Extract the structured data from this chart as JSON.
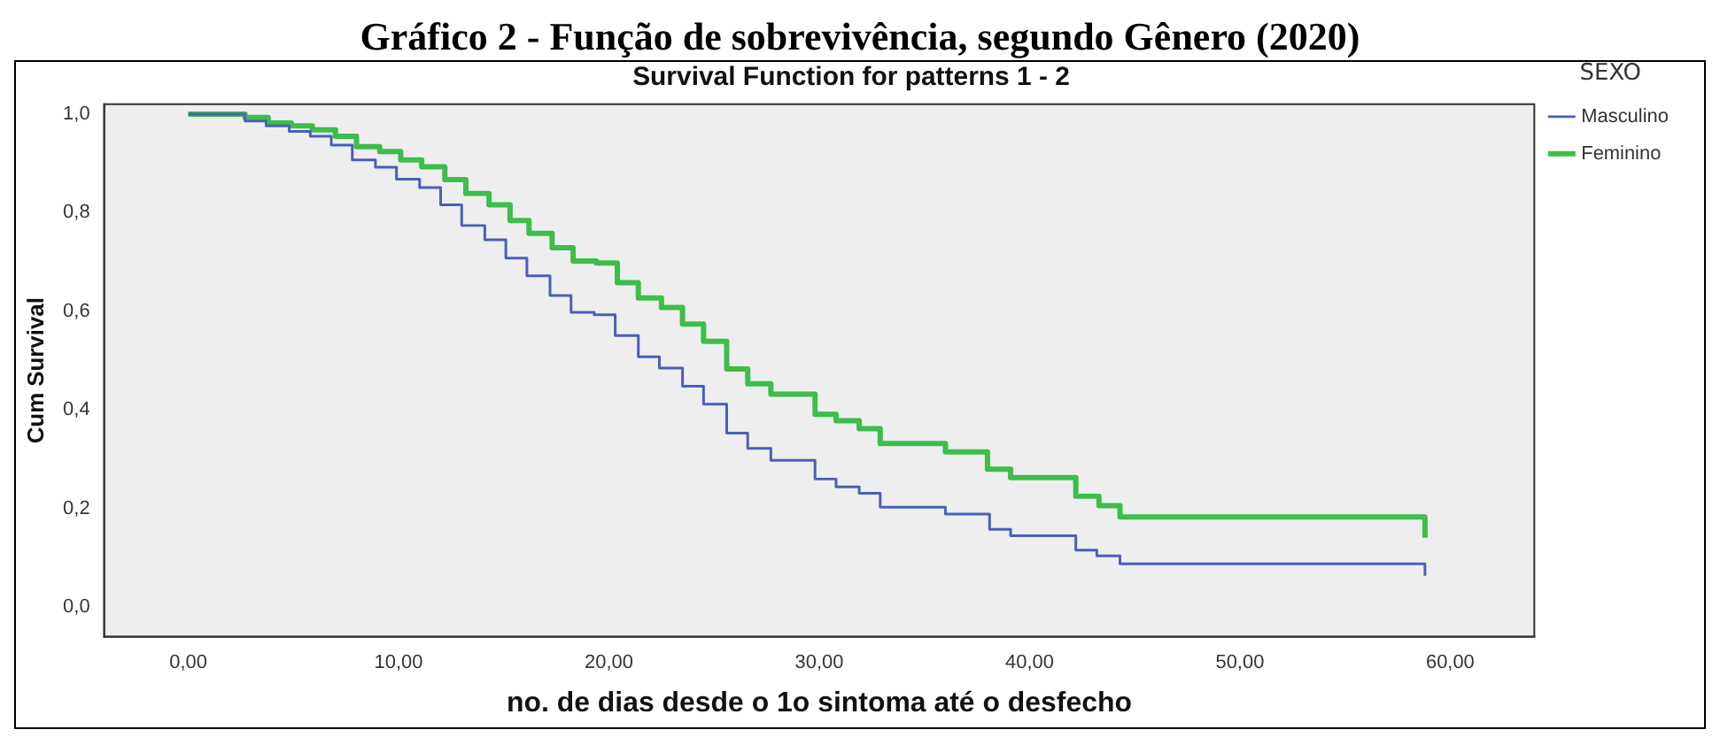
{
  "chart_data": {
    "type": "step",
    "title": "Gráfico 2 - Função de sobrevivência, segundo Gênero (2020)",
    "subtitle": "Survival Function for patterns 1 - 2",
    "xlabel": "no. de dias desde o 1o sintoma até o desfecho",
    "ylabel": "Cum Survival",
    "legend_title": "SEXO",
    "legend": "top right",
    "grid": false,
    "marker": "none",
    "xlim": [
      -4,
      64
    ],
    "ylim": [
      -0.06,
      1.02
    ],
    "xticks": [
      {
        "value": 0,
        "label": "0,00"
      },
      {
        "value": 10,
        "label": "10,00"
      },
      {
        "value": 20,
        "label": "20,00"
      },
      {
        "value": 30,
        "label": "30,00"
      },
      {
        "value": 40,
        "label": "40,00"
      },
      {
        "value": 50,
        "label": "50,00"
      },
      {
        "value": 60,
        "label": "60,00"
      }
    ],
    "yticks": [
      {
        "value": 0,
        "label": "0,0"
      },
      {
        "value": 0.2,
        "label": "0,2"
      },
      {
        "value": 0.4,
        "label": "0,4"
      },
      {
        "value": 0.6,
        "label": "0,6"
      },
      {
        "value": 0.8,
        "label": "0,8"
      },
      {
        "value": 1,
        "label": "1,0"
      }
    ],
    "series": [
      {
        "name": "Masculino",
        "color": "#4a5fb8",
        "x": [
          0,
          2.7,
          3.7,
          4.8,
          5.8,
          6.8,
          7.8,
          8.9,
          9.9,
          11.0,
          12.0,
          13.0,
          14.1,
          15.1,
          16.1,
          17.2,
          18.2,
          19.3,
          20.3,
          21.4,
          22.4,
          23.5,
          24.5,
          25.6,
          26.6,
          27.7,
          29.8,
          30.8,
          31.9,
          32.9,
          36.0,
          38.1,
          39.1,
          42.2,
          43.2,
          44.3,
          58.8
        ],
        "values": [
          1.0,
          0.986,
          0.976,
          0.965,
          0.955,
          0.937,
          0.907,
          0.892,
          0.868,
          0.851,
          0.816,
          0.774,
          0.745,
          0.708,
          0.672,
          0.632,
          0.598,
          0.593,
          0.551,
          0.508,
          0.485,
          0.448,
          0.412,
          0.353,
          0.322,
          0.298,
          0.26,
          0.244,
          0.231,
          0.203,
          0.189,
          0.158,
          0.145,
          0.116,
          0.104,
          0.088,
          0.064
        ]
      },
      {
        "name": "Feminino",
        "color": "#3dbd4a",
        "x": [
          0,
          2.7,
          3.8,
          4.9,
          5.9,
          7.0,
          8.0,
          9.1,
          10.1,
          11.1,
          12.2,
          13.2,
          14.3,
          15.3,
          16.2,
          17.3,
          18.3,
          19.4,
          20.4,
          21.4,
          22.5,
          23.5,
          24.5,
          25.6,
          26.6,
          27.7,
          29.8,
          30.8,
          31.9,
          32.9,
          36.0,
          38.0,
          39.1,
          42.2,
          43.3,
          44.3,
          58.8
        ],
        "values": [
          1.0,
          0.993,
          0.982,
          0.976,
          0.968,
          0.955,
          0.934,
          0.924,
          0.907,
          0.893,
          0.867,
          0.839,
          0.816,
          0.784,
          0.758,
          0.729,
          0.702,
          0.698,
          0.658,
          0.627,
          0.608,
          0.574,
          0.539,
          0.483,
          0.453,
          0.432,
          0.391,
          0.378,
          0.362,
          0.332,
          0.315,
          0.28,
          0.263,
          0.225,
          0.206,
          0.183,
          0.141
        ]
      }
    ]
  }
}
